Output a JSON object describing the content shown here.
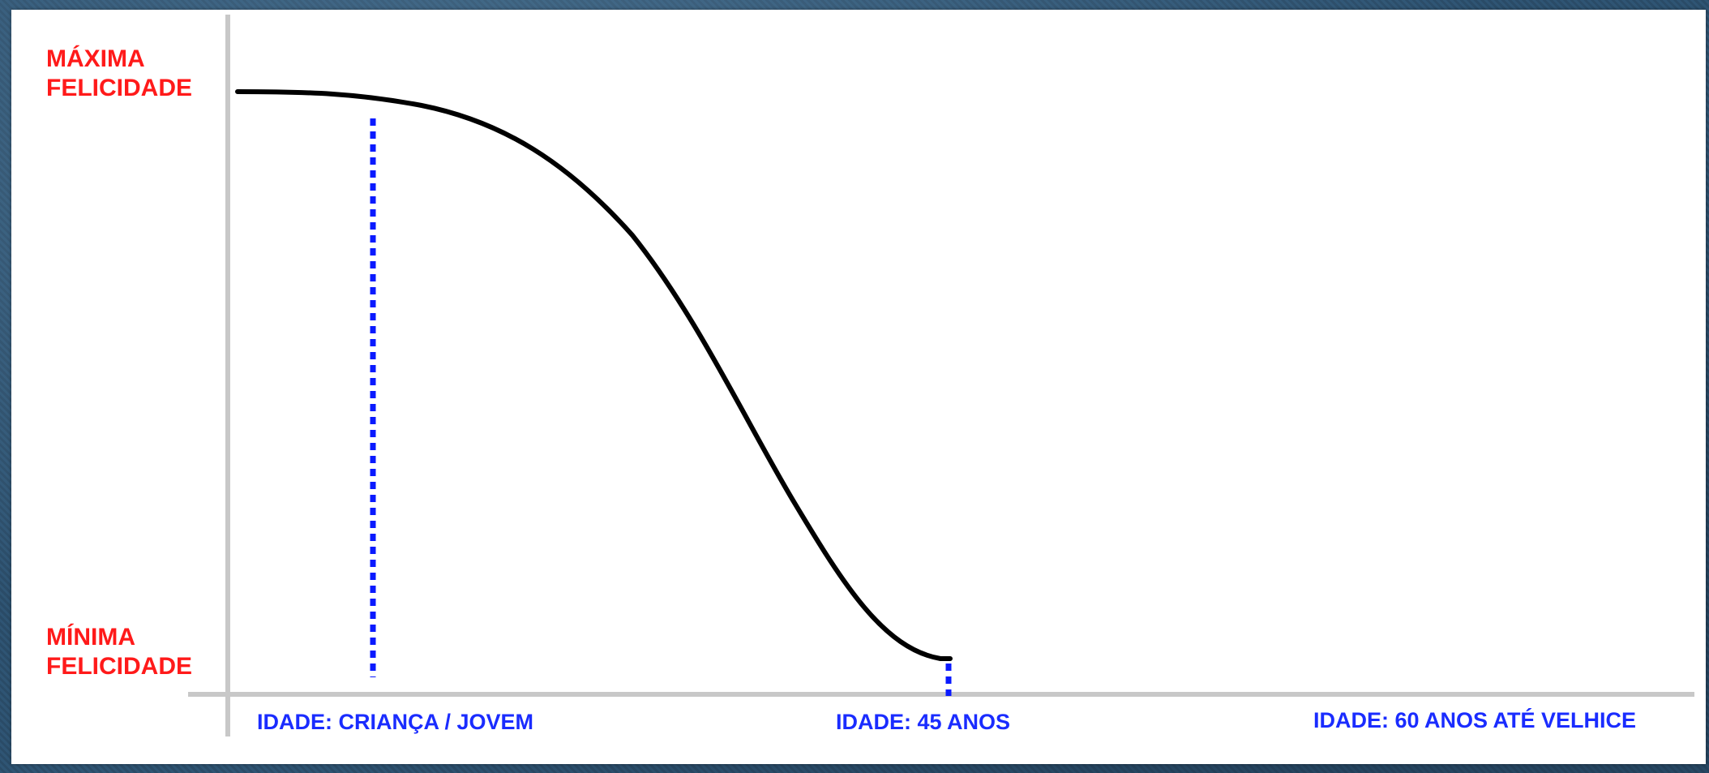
{
  "diagram": {
    "y_labels": {
      "max": [
        "MÁXIMA",
        "FELICIDADE"
      ],
      "min": [
        "MÍNIMA",
        "FELICIDADE"
      ]
    },
    "x_labels": {
      "childhood": "IDADE: CRIANÇA / JOVEM",
      "age_45": "IDADE: 45 ANOS",
      "age_60": "IDADE: 60 ANOS ATÉ VELHICE"
    },
    "colors": {
      "y_label": "#ff1a1a",
      "x_label": "#1a2cff",
      "curve": "#000000",
      "axis": "#c8c8c8",
      "marker": "#0a1aff"
    }
  }
}
